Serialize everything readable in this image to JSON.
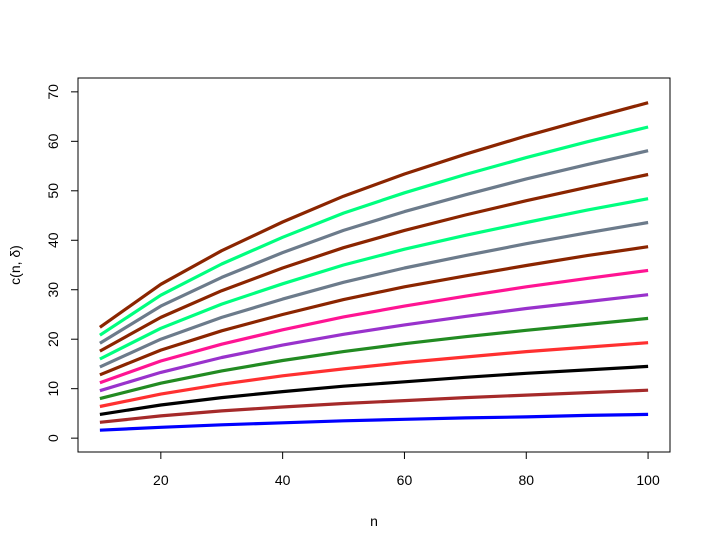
{
  "chart_data": {
    "type": "line",
    "title": "",
    "xlabel": "n",
    "ylabel": "c(n, δ)",
    "xlim": [
      6.4,
      103.6
    ],
    "ylim": [
      -2.8,
      72.8
    ],
    "xticks": [
      20,
      40,
      60,
      80,
      100
    ],
    "yticks": [
      0,
      10,
      20,
      30,
      40,
      50,
      60,
      70
    ],
    "grid": false,
    "legend": "none",
    "x": [
      10,
      20,
      30,
      40,
      50,
      60,
      70,
      80,
      90,
      100
    ],
    "series": [
      {
        "color": "#0000FF",
        "values": [
          1.6,
          2.2,
          2.7,
          3.1,
          3.5,
          3.8,
          4.1,
          4.3,
          4.6,
          4.8
        ]
      },
      {
        "color": "#A52A2A",
        "values": [
          3.2,
          4.5,
          5.5,
          6.3,
          7.0,
          7.6,
          8.2,
          8.7,
          9.2,
          9.7
        ]
      },
      {
        "color": "#000000",
        "values": [
          4.8,
          6.7,
          8.2,
          9.4,
          10.5,
          11.4,
          12.3,
          13.1,
          13.8,
          14.5
        ]
      },
      {
        "color": "#FF3030",
        "values": [
          6.4,
          8.9,
          10.9,
          12.6,
          14.0,
          15.3,
          16.4,
          17.5,
          18.4,
          19.3
        ]
      },
      {
        "color": "#228B22",
        "values": [
          8.0,
          11.1,
          13.6,
          15.7,
          17.5,
          19.1,
          20.5,
          21.8,
          23.0,
          24.2
        ]
      },
      {
        "color": "#9932CC",
        "values": [
          9.6,
          13.3,
          16.3,
          18.8,
          21.0,
          22.9,
          24.6,
          26.2,
          27.6,
          29.0
        ]
      },
      {
        "color": "#FF1493",
        "values": [
          11.2,
          15.6,
          19.0,
          21.9,
          24.5,
          26.7,
          28.7,
          30.6,
          32.3,
          33.9
        ]
      },
      {
        "color": "#8B2500",
        "values": [
          12.8,
          17.8,
          21.7,
          25.0,
          28.0,
          30.6,
          32.8,
          34.9,
          36.9,
          38.7
        ]
      },
      {
        "color": "#6C7B8B",
        "values": [
          14.4,
          20.0,
          24.4,
          28.1,
          31.5,
          34.4,
          36.9,
          39.3,
          41.5,
          43.6
        ]
      },
      {
        "color": "#00FF7F",
        "values": [
          16.0,
          22.2,
          27.1,
          31.2,
          35.0,
          38.2,
          41.0,
          43.6,
          46.1,
          48.4
        ]
      },
      {
        "color": "#8B2500",
        "values": [
          17.6,
          24.4,
          29.8,
          34.4,
          38.5,
          42.0,
          45.1,
          48.0,
          50.7,
          53.3
        ]
      },
      {
        "color": "#6C7B8B",
        "values": [
          19.2,
          26.7,
          32.5,
          37.5,
          42.0,
          45.8,
          49.2,
          52.4,
          55.3,
          58.1
        ]
      },
      {
        "color": "#00FF7F",
        "values": [
          20.8,
          28.9,
          35.2,
          40.6,
          45.5,
          49.6,
          53.3,
          56.7,
          59.9,
          62.9
        ]
      },
      {
        "color": "#8B2500",
        "values": [
          22.4,
          31.1,
          37.9,
          43.7,
          48.9,
          53.4,
          57.4,
          61.1,
          64.5,
          67.8
        ]
      }
    ]
  }
}
